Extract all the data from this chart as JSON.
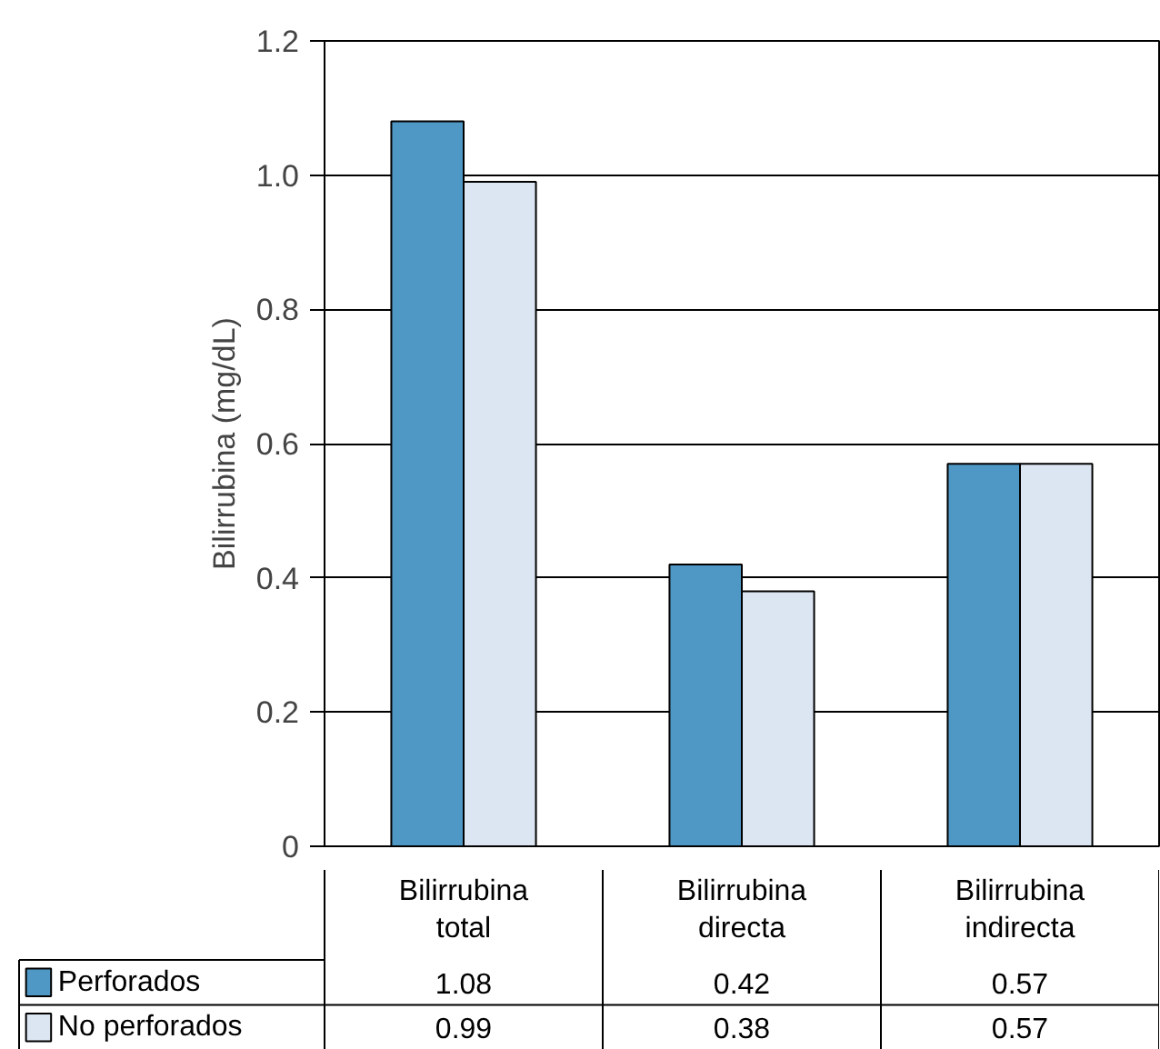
{
  "chart_data": {
    "type": "bar",
    "ylabel": "Bilirrubina (mg/dL)",
    "categories": [
      "Bilirrubina total",
      "Bilirrubina directa",
      "Bilirrubina indirecta"
    ],
    "series": [
      {
        "name": "Perforados",
        "color": "#4f97c4",
        "values": [
          1.08,
          0.42,
          0.57
        ]
      },
      {
        "name": "No perforados",
        "color": "#dce6f2",
        "values": [
          0.99,
          0.38,
          0.57
        ]
      }
    ],
    "ylim": [
      0,
      1.2
    ],
    "yticks": [
      0,
      0.2,
      0.4,
      0.6,
      0.8,
      {
        "value": 1.0,
        "label": "1.0"
      },
      1.2
    ],
    "grid": "y",
    "legend": "bottom",
    "data_labels": true
  }
}
